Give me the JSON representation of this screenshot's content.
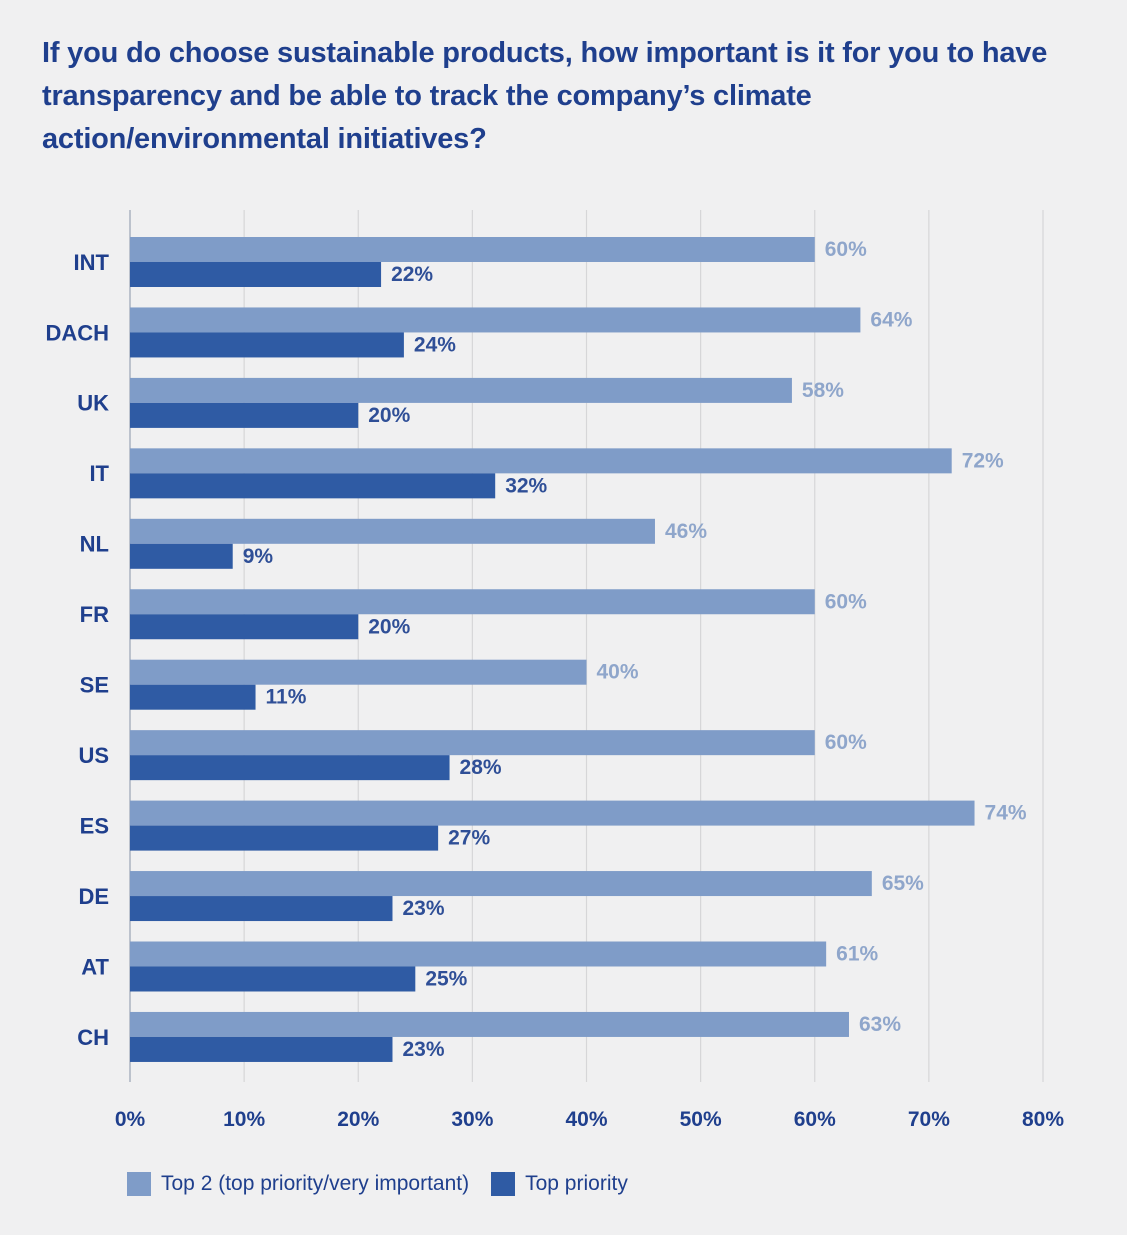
{
  "colors": {
    "background": "#f0f0f1",
    "top2": "#7f9cc8",
    "top_priority": "#2f5ba4",
    "top2_label": "#8fa6cb",
    "top_priority_label": "#2f4f97",
    "text": "#1f3f8d",
    "grid": "#d6d6d8"
  },
  "chart_data": {
    "type": "bar",
    "orientation": "horizontal",
    "title": "If you do choose sustainable products, how important is it for you to have transparency and be able to track the company’s climate action/environmental initiatives?",
    "categories": [
      "INT",
      "DACH",
      "UK",
      "IT",
      "NL",
      "FR",
      "SE",
      "US",
      "ES",
      "DE",
      "AT",
      "CH"
    ],
    "series": [
      {
        "name": "Top 2 (top priority/very important)",
        "values": [
          60,
          64,
          58,
          72,
          46,
          60,
          40,
          60,
          74,
          65,
          61,
          63
        ],
        "labels": [
          "60%",
          "64%",
          "58%",
          "72%",
          "46%",
          "60%",
          "40%",
          "60%",
          "74%",
          "65%",
          "61%",
          "63%"
        ]
      },
      {
        "name": "Top priority",
        "values": [
          22,
          24,
          20,
          32,
          9,
          20,
          11,
          28,
          27,
          23,
          25,
          23
        ],
        "labels": [
          "22%",
          "24%",
          "20%",
          "32%",
          "9%",
          "20%",
          "11%",
          "28%",
          "27%",
          "23%",
          "25%",
          "23%"
        ]
      }
    ],
    "xlim": [
      0,
      80
    ],
    "xticks": [
      0,
      10,
      20,
      30,
      40,
      50,
      60,
      70,
      80
    ],
    "xtick_labels": [
      "0%",
      "10%",
      "20%",
      "30%",
      "40%",
      "50%",
      "60%",
      "70%",
      "80%"
    ],
    "grid": true,
    "legend": "bottom-left",
    "xlabel": "",
    "ylabel": ""
  }
}
